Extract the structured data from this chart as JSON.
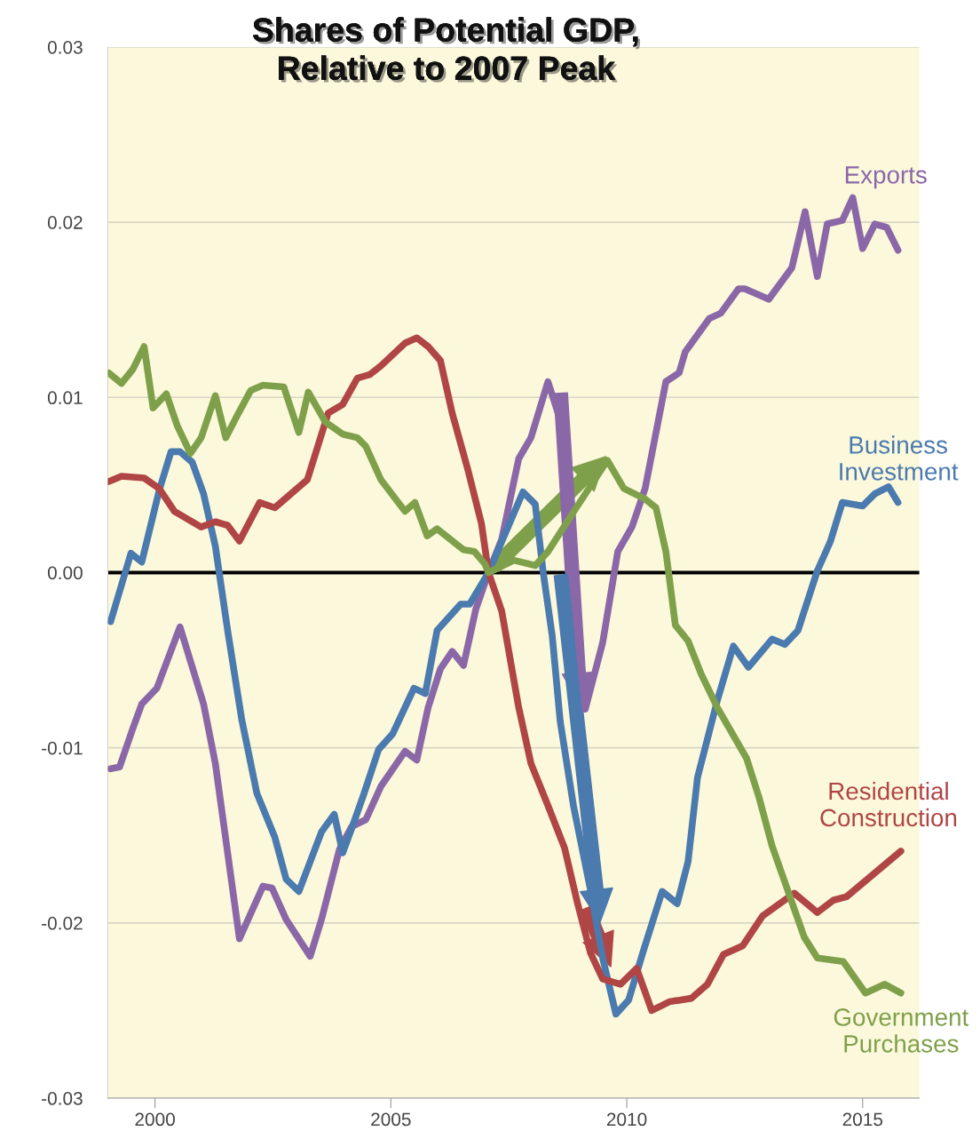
{
  "chart_data": {
    "type": "line",
    "title": "Shares of Potential GDP,\nRelative to 2007 Peak",
    "xlim": [
      1999,
      2016.2
    ],
    "xticks": [
      2000,
      2005,
      2010,
      2015
    ],
    "ylim": [
      -0.03,
      0.03
    ],
    "yticks": [
      {
        "value": 0.03,
        "label": "0.03"
      },
      {
        "value": 0.02,
        "label": "0.02"
      },
      {
        "value": 0.01,
        "label": "0.01"
      },
      {
        "value": 0,
        "label": "0.00"
      },
      {
        "value": -0.01,
        "label": "-0.01"
      },
      {
        "value": -0.02,
        "label": "-0.02"
      },
      {
        "value": -0.03,
        "label": "-0.03"
      }
    ],
    "grid": "y",
    "legend": false,
    "marker": "none",
    "line_style": "solid",
    "ref_lines": [
      {
        "axis": "y",
        "value": 0,
        "color": "#000000"
      }
    ],
    "series": [
      {
        "name": "Exports",
        "color": "#8a68a8",
        "x": [
          1999.06,
          1999.25,
          1999.53,
          1999.72,
          2000.04,
          2000.53,
          2001.03,
          2001.28,
          2001.79,
          2002.29,
          2002.48,
          2002.78,
          2003.29,
          2003.53,
          2003.91,
          2004.17,
          2004.47,
          2004.79,
          2005.3,
          2005.55,
          2005.79,
          2006.05,
          2006.3,
          2006.54,
          2006.8,
          2007.07,
          2007.35,
          2007.71,
          2007.97,
          2008.33,
          2008.59,
          2008.83,
          2009.12,
          2009.49,
          2009.81,
          2010.11,
          2010.39,
          2010.83,
          2011.11,
          2011.24,
          2011.75,
          2011.99,
          2012.37,
          2012.5,
          2013.01,
          2013.5,
          2013.78,
          2014.04,
          2014.25,
          2014.57,
          2014.79,
          2015.0,
          2015.26,
          2015.51,
          2015.75
        ],
        "values": [
          -0.0112,
          -0.0111,
          -0.0089,
          -0.0075,
          -0.0066,
          -0.0031,
          -0.0075,
          -0.0109,
          -0.0209,
          -0.0179,
          -0.018,
          -0.0198,
          -0.0219,
          -0.0198,
          -0.0158,
          -0.0145,
          -0.0141,
          -0.0122,
          -0.0102,
          -0.0107,
          -0.0077,
          -0.0055,
          -0.0045,
          -0.0053,
          -0.0021,
          0,
          0.0019,
          0.0065,
          0.0077,
          0.0109,
          0.0087,
          0.0001,
          -0.0078,
          -0.004,
          0.0012,
          0.0026,
          0.0048,
          0.0109,
          0.0114,
          0.0126,
          0.0145,
          0.0148,
          0.0162,
          0.0162,
          0.0156,
          0.0174,
          0.0206,
          0.0169,
          0.0199,
          0.0201,
          0.0214,
          0.0185,
          0.0199,
          0.0197,
          0.0184
        ]
      },
      {
        "name": "Business\nInvestment",
        "color": "#4a7aae",
        "x": [
          1999.06,
          1999.49,
          1999.72,
          2000.09,
          2000.34,
          2000.53,
          2000.79,
          2001.03,
          2001.28,
          2001.54,
          2001.84,
          2002.16,
          2002.54,
          2002.78,
          2003.05,
          2003.29,
          2003.53,
          2003.8,
          2003.98,
          2004.17,
          2004.42,
          2004.74,
          2005.04,
          2005.49,
          2005.73,
          2005.98,
          2006.48,
          2006.67,
          2007.07,
          2007.8,
          2008.06,
          2008.23,
          2008.42,
          2008.59,
          2008.87,
          2009.23,
          2009.49,
          2009.77,
          2010.04,
          2010.34,
          2010.75,
          2011.07,
          2011.3,
          2011.5,
          2011.92,
          2012.26,
          2012.58,
          2013.08,
          2013.35,
          2013.63,
          2014.04,
          2014.32,
          2014.57,
          2015.0,
          2015.26,
          2015.55,
          2015.75
        ],
        "values": [
          -0.0028,
          0.0011,
          0.0006,
          0.0047,
          0.0069,
          0.0069,
          0.0063,
          0.0045,
          0.0015,
          -0.0033,
          -0.0084,
          -0.0126,
          -0.0151,
          -0.0175,
          -0.0182,
          -0.0165,
          -0.0148,
          -0.0138,
          -0.016,
          -0.0146,
          -0.0127,
          -0.0101,
          -0.0092,
          -0.0066,
          -0.0069,
          -0.0033,
          -0.0018,
          -0.0018,
          0,
          0.0046,
          0.0039,
          0,
          -0.0036,
          -0.0085,
          -0.0133,
          -0.0181,
          -0.022,
          -0.0252,
          -0.0244,
          -0.0217,
          -0.0182,
          -0.0189,
          -0.0165,
          -0.0117,
          -0.0073,
          -0.0042,
          -0.0054,
          -0.0038,
          -0.0041,
          -0.0033,
          0.0001,
          0.0018,
          0.004,
          0.0038,
          0.0045,
          0.0049,
          0.004
        ]
      },
      {
        "name": "Residential\nConstruction",
        "color": "#b04545",
        "x": [
          1999.02,
          1999.29,
          1999.77,
          2000.09,
          2000.41,
          2000.98,
          2001.28,
          2001.54,
          2001.79,
          2002.22,
          2002.54,
          2003.23,
          2003.67,
          2003.98,
          2004.29,
          2004.55,
          2004.79,
          2005.3,
          2005.55,
          2005.79,
          2006.05,
          2006.3,
          2006.62,
          2006.92,
          2007.07,
          2007.35,
          2007.71,
          2007.97,
          2008.33,
          2008.68,
          2008.95,
          2009.23,
          2009.49,
          2009.87,
          2010.21,
          2010.53,
          2010.9,
          2011.37,
          2011.71,
          2012.05,
          2012.46,
          2012.88,
          2013.55,
          2014.04,
          2014.38,
          2014.66,
          2015.81
        ],
        "values": [
          0.0052,
          0.0055,
          0.0054,
          0.0048,
          0.0035,
          0.0026,
          0.0029,
          0.0027,
          0.0018,
          0.004,
          0.0037,
          0.0053,
          0.0091,
          0.0096,
          0.0111,
          0.0113,
          0.0118,
          0.0131,
          0.0134,
          0.0129,
          0.0121,
          0.0091,
          0.006,
          0.0028,
          0,
          -0.0022,
          -0.0077,
          -0.0109,
          -0.0133,
          -0.0157,
          -0.0188,
          -0.0217,
          -0.0232,
          -0.0235,
          -0.0226,
          -0.025,
          -0.0245,
          -0.0243,
          -0.0235,
          -0.0218,
          -0.0213,
          -0.0196,
          -0.0183,
          -0.0194,
          -0.0187,
          -0.0185,
          -0.0159
        ]
      },
      {
        "name": "Government\nPurchases",
        "color": "#7fa04a",
        "x": [
          1999.02,
          1999.29,
          1999.53,
          1999.77,
          1999.96,
          2000.24,
          2000.47,
          2000.75,
          2000.98,
          2001.28,
          2001.5,
          2001.73,
          2002.03,
          2002.29,
          2002.73,
          2003.05,
          2003.25,
          2003.61,
          2003.98,
          2004.29,
          2004.47,
          2004.79,
          2005.3,
          2005.51,
          2005.77,
          2005.98,
          2006.54,
          2006.77,
          2006.99,
          2007.07,
          2007.61,
          2008.06,
          2008.33,
          2008.93,
          2009.59,
          2009.94,
          2010.39,
          2010.62,
          2010.83,
          2011.03,
          2011.3,
          2011.58,
          2011.92,
          2012.54,
          2012.8,
          2013.08,
          2013.42,
          2013.76,
          2014.04,
          2014.59,
          2015.06,
          2015.47,
          2015.81
        ],
        "values": [
          0.0114,
          0.0108,
          0.0116,
          0.0129,
          0.0094,
          0.0102,
          0.0084,
          0.0068,
          0.0077,
          0.0101,
          0.0077,
          0.0089,
          0.0104,
          0.0107,
          0.0106,
          0.008,
          0.0103,
          0.0086,
          0.0079,
          0.0077,
          0.0072,
          0.0053,
          0.0035,
          0.004,
          0.0021,
          0.0025,
          0.0013,
          0.0012,
          0.0005,
          0,
          0.0007,
          0.0004,
          0.0012,
          0.0037,
          0.0064,
          0.0048,
          0.0042,
          0.0037,
          0.0012,
          -0.003,
          -0.0039,
          -0.0058,
          -0.0077,
          -0.0106,
          -0.0128,
          -0.0156,
          -0.0182,
          -0.0208,
          -0.022,
          -0.0222,
          -0.024,
          -0.0235,
          -0.024
        ]
      }
    ]
  }
}
